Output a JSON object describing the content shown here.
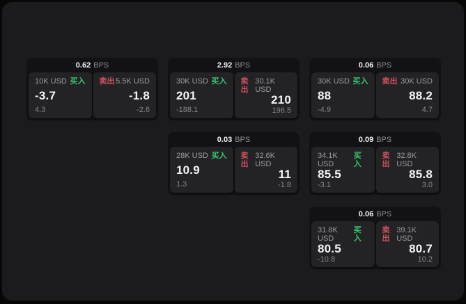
{
  "labels": {
    "bps": "BPS",
    "buy": "买入",
    "sell": "卖出"
  },
  "colors": {
    "buy_green": "#39c46e",
    "sell_red": "#d14f5f",
    "panel_bg": "#1b1b1d",
    "card_bg": "#121214",
    "subcard_bg": "#232326"
  },
  "cards": [
    {
      "bps": "0.62",
      "buy": {
        "amount": "10K USD",
        "price": "-3.7",
        "delta": "4.3"
      },
      "sell": {
        "amount": "5.5K USD",
        "price": "-1.8",
        "delta": "-2.6"
      }
    },
    {
      "bps": "2.92",
      "buy": {
        "amount": "30K USD",
        "price": "201",
        "delta": "-188.1"
      },
      "sell": {
        "amount": "30.1K USD",
        "price": "210",
        "delta": "196.5"
      }
    },
    {
      "bps": "0.06",
      "buy": {
        "amount": "30K USD",
        "price": "88",
        "delta": "-4.9"
      },
      "sell": {
        "amount": "30K USD",
        "price": "88.2",
        "delta": "4.7"
      }
    },
    {
      "bps": "0.03",
      "buy": {
        "amount": "28K USD",
        "price": "10.9",
        "delta": "1.3"
      },
      "sell": {
        "amount": "32.6K USD",
        "price": "11",
        "delta": "-1.8"
      }
    },
    {
      "bps": "0.09",
      "buy": {
        "amount": "34.1K USD",
        "price": "85.5",
        "delta": "-3.1"
      },
      "sell": {
        "amount": "32.8K USD",
        "price": "85.8",
        "delta": "3.0"
      }
    },
    {
      "bps": "0.06",
      "buy": {
        "amount": "31.8K USD",
        "price": "80.5",
        "delta": "-10.8"
      },
      "sell": {
        "amount": "39.1K USD",
        "price": "80.7",
        "delta": "10.2"
      }
    }
  ]
}
